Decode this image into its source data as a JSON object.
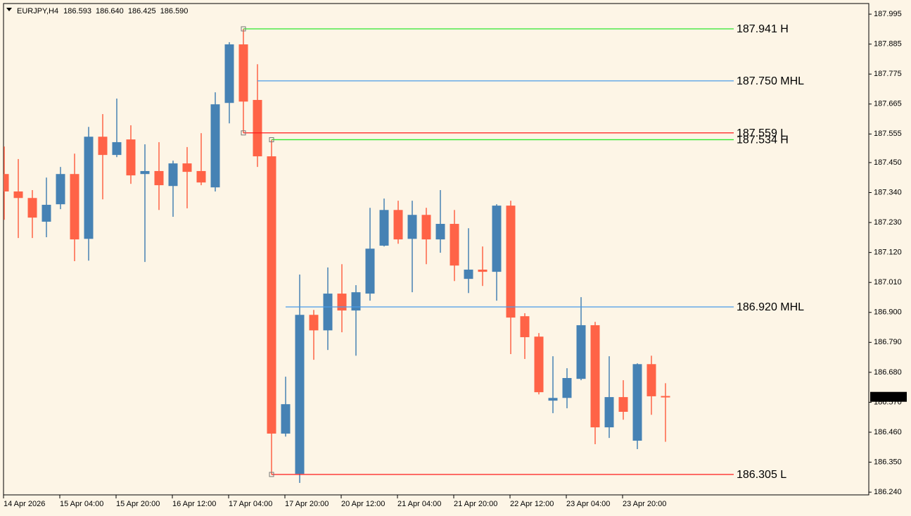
{
  "chart_data": {
    "type": "candlestick",
    "header": {
      "symbol": "EURJPY,H4",
      "open": "186.593",
      "high": "186.640",
      "low": "186.425",
      "close": "186.590"
    },
    "categories": [
      "14 Apr 2026",
      null,
      null,
      null,
      "15 Apr 04:00",
      null,
      null,
      null,
      "15 Apr 20:00",
      null,
      null,
      null,
      "16 Apr 12:00",
      null,
      null,
      null,
      "17 Apr 04:00",
      null,
      null,
      null,
      "17 Apr 20:00",
      null,
      null,
      null,
      "20 Apr 12:00",
      null,
      null,
      null,
      "21 Apr 04:00",
      null,
      null,
      null,
      "21 Apr 20:00",
      null,
      null,
      null,
      "22 Apr 12:00",
      null,
      null,
      null,
      "23 Apr 04:00",
      null,
      null,
      null,
      "23 Apr 20:00",
      null,
      null,
      null
    ],
    "open": [
      187.408,
      187.344,
      187.32,
      187.233,
      187.297,
      187.408,
      187.17,
      187.545,
      187.478,
      187.535,
      187.408,
      187.419,
      187.364,
      187.447,
      187.419,
      187.359,
      187.669,
      187.884,
      187.68,
      187.473,
      186.455,
      186.307,
      186.891,
      186.834,
      186.969,
      186.907,
      186.969,
      187.145,
      187.276,
      187.17,
      187.258,
      187.168,
      187.225,
      187.023,
      187.057,
      187.049,
      187.292,
      186.886,
      186.811,
      186.576,
      186.586,
      186.656,
      186.853,
      186.478,
      186.589,
      186.429,
      186.71,
      186.593
    ],
    "high": [
      187.509,
      187.463,
      187.349,
      187.395,
      187.434,
      187.483,
      187.581,
      187.628,
      187.685,
      187.587,
      187.517,
      187.525,
      187.457,
      187.507,
      187.558,
      187.708,
      187.892,
      187.941,
      187.811,
      187.534,
      186.664,
      187.039,
      186.909,
      187.065,
      187.077,
      187.0,
      187.284,
      187.318,
      187.31,
      187.31,
      187.284,
      187.349,
      187.276,
      187.209,
      187.142,
      187.297,
      187.31,
      186.897,
      186.824,
      186.739,
      186.695,
      186.956,
      186.865,
      186.739,
      186.651,
      186.713,
      186.741,
      186.64
    ],
    "low": [
      187.24,
      187.173,
      187.173,
      187.176,
      187.279,
      187.088,
      187.09,
      187.315,
      187.47,
      187.372,
      187.085,
      187.276,
      187.251,
      187.282,
      187.367,
      187.344,
      187.594,
      187.559,
      187.434,
      186.305,
      186.444,
      186.274,
      186.726,
      186.762,
      186.827,
      186.741,
      186.943,
      187.142,
      187.152,
      186.974,
      187.077,
      187.119,
      187.015,
      186.971,
      186.997,
      186.943,
      186.747,
      186.729,
      186.599,
      186.53,
      186.548,
      186.651,
      186.416,
      186.439,
      186.506,
      186.398,
      186.524,
      186.425
    ],
    "close": [
      187.344,
      187.32,
      187.248,
      187.295,
      187.408,
      187.168,
      187.545,
      187.478,
      187.525,
      187.403,
      187.419,
      187.367,
      187.447,
      187.416,
      187.377,
      187.664,
      187.884,
      187.674,
      187.473,
      186.455,
      186.563,
      186.891,
      186.834,
      186.969,
      186.907,
      186.974,
      187.134,
      187.276,
      187.168,
      187.258,
      187.168,
      187.225,
      187.072,
      187.057,
      187.049,
      187.292,
      186.881,
      186.809,
      186.607,
      186.586,
      186.659,
      186.853,
      186.478,
      186.589,
      186.535,
      186.71,
      186.592,
      186.59
    ],
    "up_color": "#4682b4",
    "down_color": "#ff6347",
    "ylim": [
      186.23,
      188.034
    ],
    "yticks": [
      {
        "value": 186.24,
        "label": "186.240"
      },
      {
        "value": 186.35,
        "label": "186.350"
      },
      {
        "value": 186.46,
        "label": "186.460"
      },
      {
        "value": 186.57,
        "label": "186.570"
      },
      {
        "value": 186.68,
        "label": "186.680"
      },
      {
        "value": 186.79,
        "label": "186.790"
      },
      {
        "value": 186.9,
        "label": "186.900"
      },
      {
        "value": 187.01,
        "label": "187.010"
      },
      {
        "value": 187.12,
        "label": "187.120"
      },
      {
        "value": 187.23,
        "label": "187.230"
      },
      {
        "value": 187.34,
        "label": "187.340"
      },
      {
        "value": 187.45,
        "label": "187.450"
      },
      {
        "value": 187.555,
        "label": "187.555"
      },
      {
        "value": 187.665,
        "label": "187.665"
      },
      {
        "value": 187.775,
        "label": "187.775"
      },
      {
        "value": 187.885,
        "label": "187.885"
      },
      {
        "value": 187.995,
        "label": "187.995"
      }
    ],
    "levels": [
      {
        "value": 187.941,
        "label": "187.941 H",
        "color": "#2ee82e"
      },
      {
        "value": 187.75,
        "label": "187.750 MHL",
        "color": "#4a9be8"
      },
      {
        "value": 187.559,
        "label": "187.559 L",
        "color": "#ff1a1a"
      },
      {
        "value": 187.534,
        "label": "187.534 H",
        "color": "#2ee82e"
      },
      {
        "value": 186.92,
        "label": "186.920 MHL",
        "color": "#4a9be8"
      },
      {
        "value": 186.305,
        "label": "186.305 L",
        "color": "#ff1a1a"
      }
    ],
    "current_price": {
      "value": 186.59,
      "label": "186.590"
    }
  }
}
